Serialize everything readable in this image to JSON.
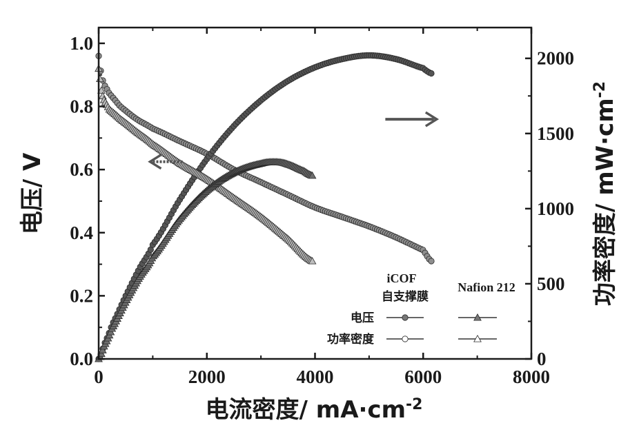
{
  "chart_data": {
    "type": "line",
    "xlabel": "电流密度/ mA·cm",
    "xlabel_sup": "-2",
    "ylabel_left": "电压/ V",
    "ylabel_right": "功率密度/ mW·cm",
    "ylabel_right_sup": "-2",
    "xlim": [
      0,
      8000
    ],
    "ylim_left": [
      0,
      1.05
    ],
    "ylim_right": [
      0,
      2205
    ],
    "x_ticks": [
      "0",
      "2000",
      "4000",
      "6000",
      "8000"
    ],
    "y_left_ticks": [
      "0.0",
      "0.2",
      "0.4",
      "0.6",
      "0.8",
      "1.0"
    ],
    "y_right_ticks": [
      "0",
      "500",
      "1000",
      "1500",
      "2000"
    ],
    "grid": false,
    "legend": {
      "position": "bottom-right",
      "col_headers": [
        "iCOF",
        "自支撑膜",
        "Nafion 212"
      ],
      "row_labels": [
        "电压",
        "功率密度"
      ]
    },
    "series": [
      {
        "name": "iCOF 自支撑膜 电压",
        "axis": "left",
        "marker": "circle",
        "fill": "#8f8f8f",
        "x": [
          0,
          50,
          100,
          200,
          400,
          700,
          1000,
          1500,
          2000,
          2500,
          3000,
          3500,
          4000,
          4500,
          5000,
          5500,
          6000,
          6150
        ],
        "y": [
          0.96,
          0.9,
          0.87,
          0.84,
          0.8,
          0.76,
          0.73,
          0.69,
          0.65,
          0.6,
          0.56,
          0.52,
          0.48,
          0.45,
          0.42,
          0.385,
          0.345,
          0.31
        ]
      },
      {
        "name": "iCOF 自支撑膜 功率密度",
        "axis": "right",
        "marker": "circle",
        "fill": "#555555",
        "x": [
          0,
          100,
          250,
          500,
          750,
          1000,
          1500,
          2000,
          2500,
          3000,
          3500,
          4000,
          4500,
          5000,
          5500,
          6000,
          6150
        ],
        "y": [
          0,
          95,
          230,
          420,
          600,
          760,
          1060,
          1330,
          1550,
          1720,
          1850,
          1940,
          1995,
          2020,
          1995,
          1935,
          1900
        ]
      },
      {
        "name": "Nafion 212 电压",
        "axis": "left",
        "marker": "triangle",
        "fill": "#bdbdbd",
        "x": [
          0,
          50,
          100,
          200,
          400,
          700,
          1000,
          1500,
          2000,
          2500,
          3000,
          3500,
          3950
        ],
        "y": [
          0.92,
          0.85,
          0.82,
          0.79,
          0.76,
          0.72,
          0.68,
          0.62,
          0.57,
          0.51,
          0.45,
          0.38,
          0.31
        ]
      },
      {
        "name": "Nafion 212 功率密度",
        "axis": "right",
        "marker": "triangle",
        "fill": "#6e6e6e",
        "x": [
          0,
          100,
          250,
          500,
          750,
          1000,
          1500,
          2000,
          2500,
          3000,
          3300,
          3500,
          3800,
          3950
        ],
        "y": [
          0,
          85,
          205,
          380,
          540,
          680,
          930,
          1120,
          1240,
          1300,
          1310,
          1295,
          1250,
          1220
        ]
      }
    ],
    "arrows": [
      {
        "name": "left-axis-arrow",
        "direction": "left",
        "style": "dotted",
        "from": [
          1550,
          0.625
        ],
        "to": [
          950,
          0.625
        ],
        "axis": "left"
      },
      {
        "name": "right-axis-arrow",
        "direction": "right",
        "style": "solid",
        "from": [
          5300,
          1595
        ],
        "to": [
          6250,
          1595
        ],
        "axis": "right"
      }
    ]
  }
}
